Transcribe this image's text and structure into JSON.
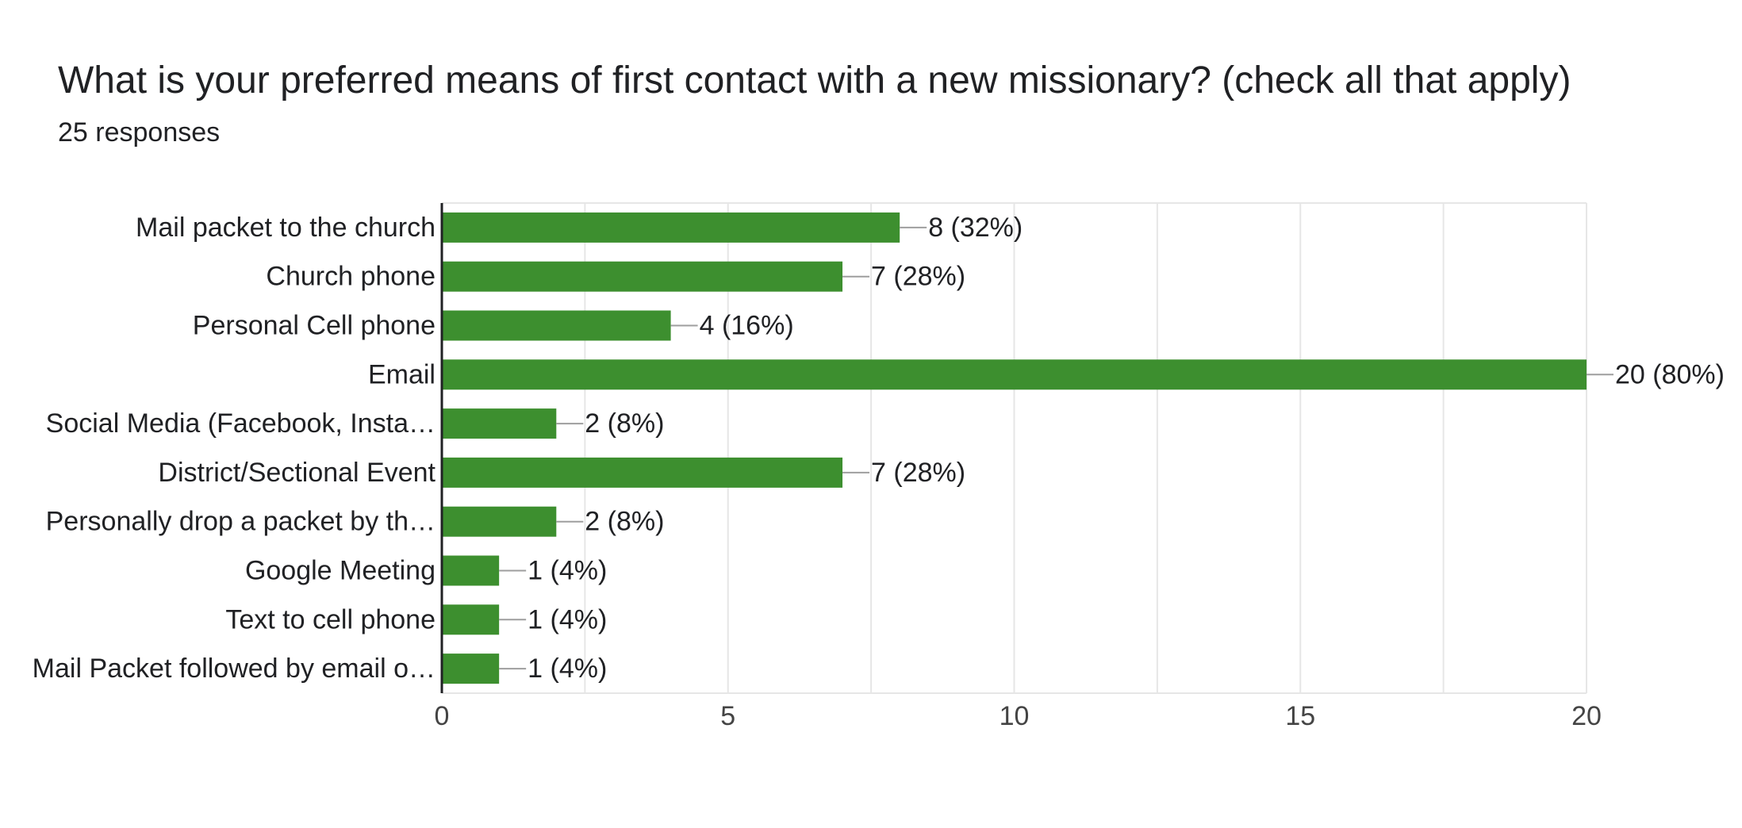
{
  "title": "What is your preferred means of first contact with a new missionary? (check all that apply)",
  "subtitle": "25 responses",
  "colors": {
    "bar": "#3d8f2f",
    "grid": "#e6e6e6",
    "axis": "#202124",
    "leader": "#9e9e9e"
  },
  "chart_data": {
    "type": "bar",
    "orientation": "horizontal",
    "categories": [
      "Mail packet to the church",
      "Church phone",
      "Personal Cell phone",
      "Email",
      "Social Media (Facebook, Insta…",
      "District/Sectional Event",
      "Personally drop a packet by th…",
      "Google Meeting",
      "Text to cell phone",
      "Mail Packet followed by email o…"
    ],
    "values": [
      8,
      7,
      4,
      20,
      2,
      7,
      2,
      1,
      1,
      1
    ],
    "value_labels": [
      "8 (32%)",
      "7 (28%)",
      "4 (16%)",
      "20 (80%)",
      "2 (8%)",
      "7 (28%)",
      "2 (8%)",
      "1 (4%)",
      "1 (4%)",
      "1 (4%)"
    ],
    "xlim": [
      0,
      20
    ],
    "xticks": [
      0,
      5,
      10,
      15,
      20
    ],
    "grid": true,
    "legend": "none"
  }
}
